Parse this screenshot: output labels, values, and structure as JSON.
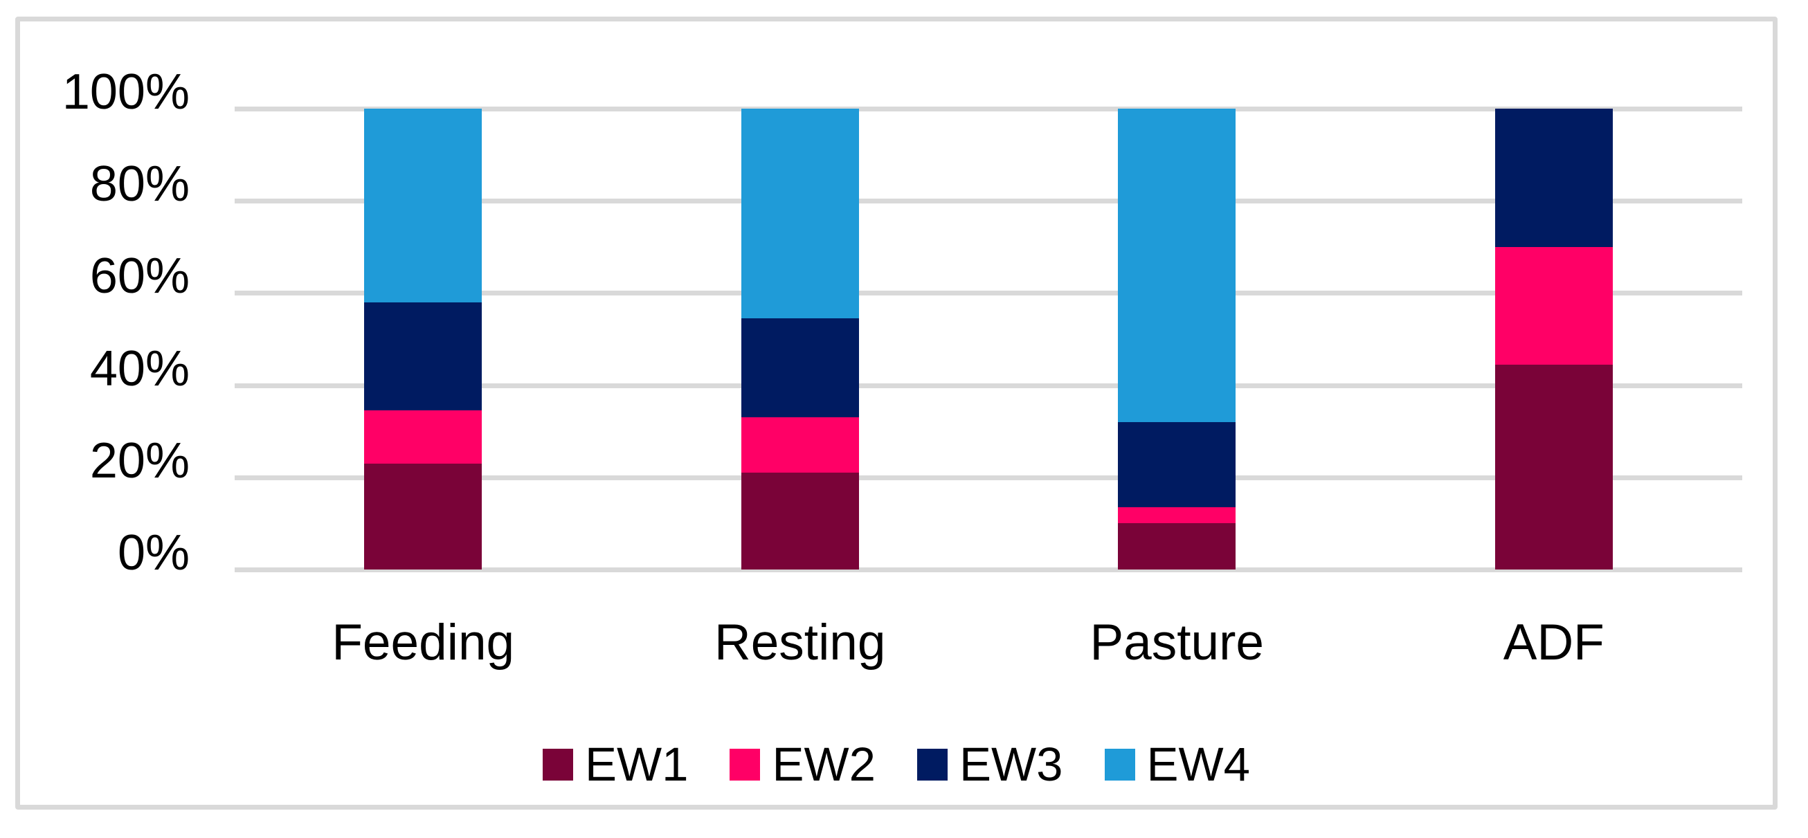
{
  "chart_data": {
    "type": "bar",
    "subtype": "stacked-100-percent",
    "title": "",
    "xlabel": "",
    "ylabel": "",
    "categories": [
      "Feeding",
      "Resting",
      "Pasture",
      "ADF"
    ],
    "series": [
      {
        "name": "EW1",
        "color": "#7A0338",
        "values": [
          23,
          21,
          10,
          44.5
        ]
      },
      {
        "name": "EW2",
        "color": "#FF0066",
        "values": [
          11.5,
          12,
          3.5,
          25.5
        ]
      },
      {
        "name": "EW3",
        "color": "#001B61",
        "values": [
          23.5,
          21.5,
          18.5,
          30
        ]
      },
      {
        "name": "EW4",
        "color": "#1F9BD8",
        "values": [
          42,
          45.5,
          68,
          0
        ]
      }
    ],
    "y_axis": {
      "min": 0,
      "max": 100,
      "tick_step": 20,
      "tick_labels": [
        "0%",
        "20%",
        "40%",
        "60%",
        "80%",
        "100%"
      ]
    },
    "grid": "horizontal",
    "grid_color": "#D9D9D9",
    "frame_color": "#D9D9D9",
    "background_color": "#FFFFFF",
    "text_color": "#000000",
    "legend_position": "bottom",
    "legend_entries": [
      "EW1",
      "EW2",
      "EW3",
      "EW4"
    ]
  }
}
